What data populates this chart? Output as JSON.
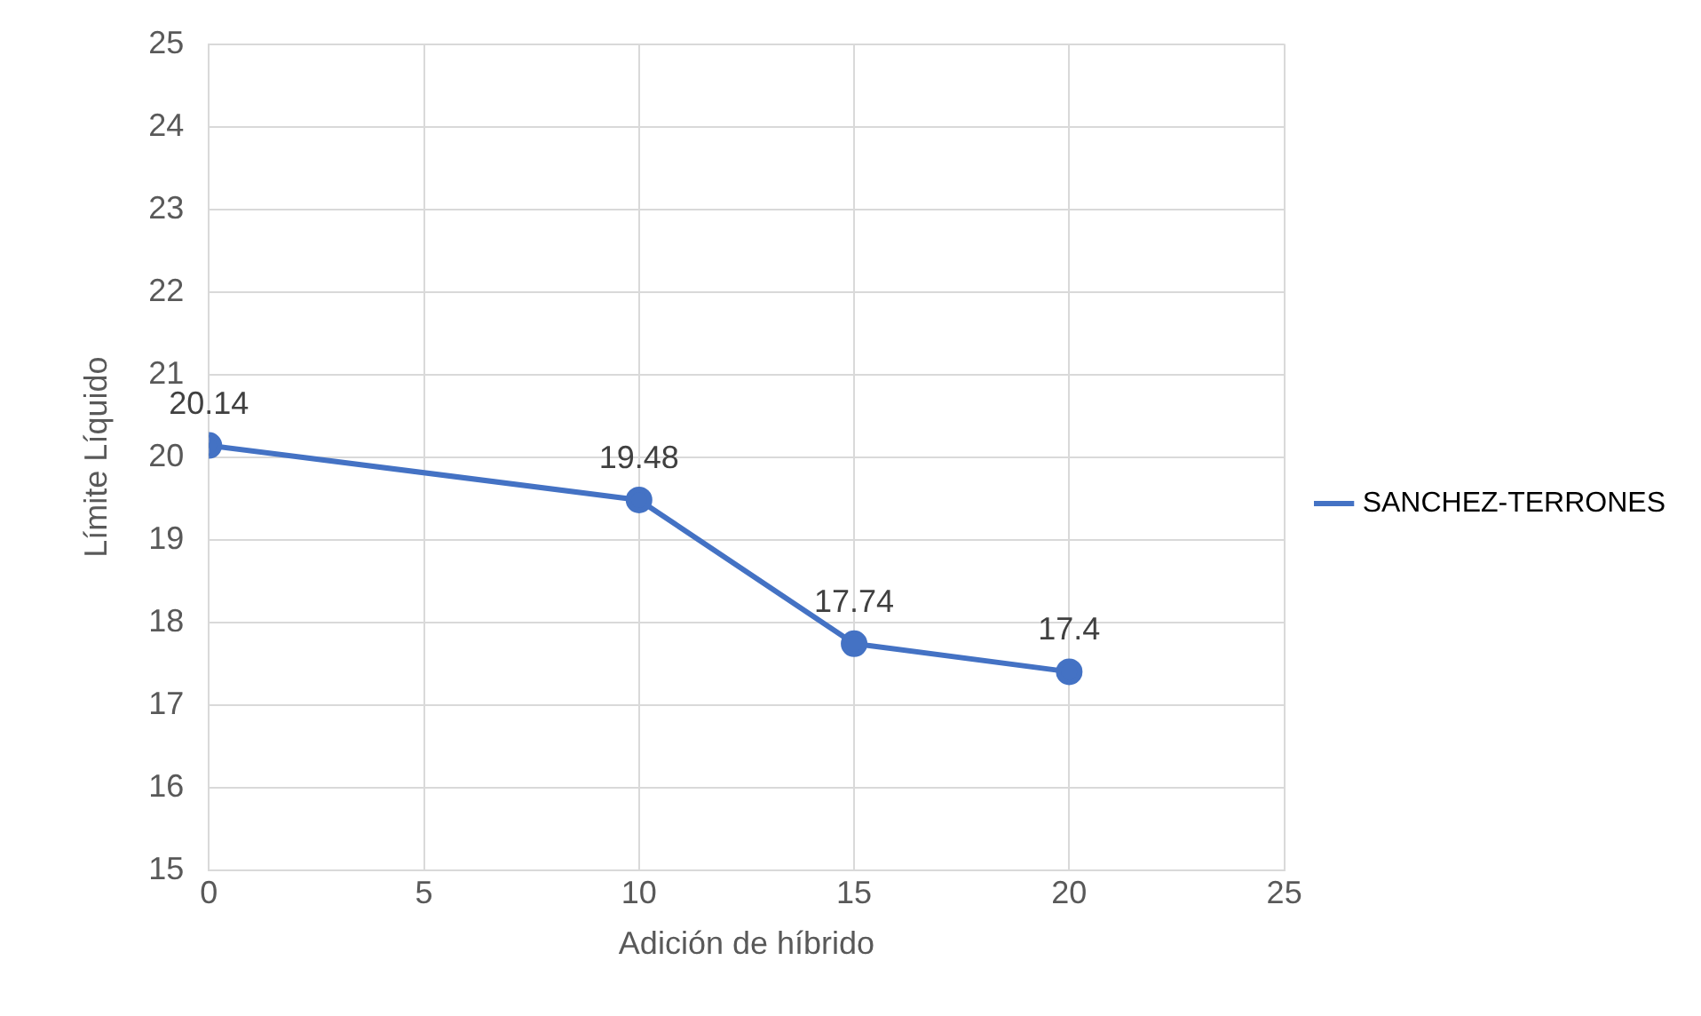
{
  "chart_data": {
    "type": "line",
    "xlabel": "Adición de híbrido",
    "ylabel": "Límite Líquido",
    "x": [
      0,
      10,
      15,
      20
    ],
    "series": [
      {
        "name": "SANCHEZ-TERRONES",
        "color": "#4472c4",
        "values": [
          20.14,
          19.48,
          17.74,
          17.4
        ]
      }
    ],
    "xlim": [
      0,
      25
    ],
    "xticks": [
      0,
      5,
      10,
      15,
      20,
      25
    ],
    "ylim": [
      15,
      25
    ],
    "yticks": [
      15,
      16,
      17,
      18,
      19,
      20,
      21,
      22,
      23,
      24,
      25
    ],
    "grid": true,
    "legend": "right",
    "marker": "circle",
    "line_style": "solid",
    "data_labels": true
  }
}
